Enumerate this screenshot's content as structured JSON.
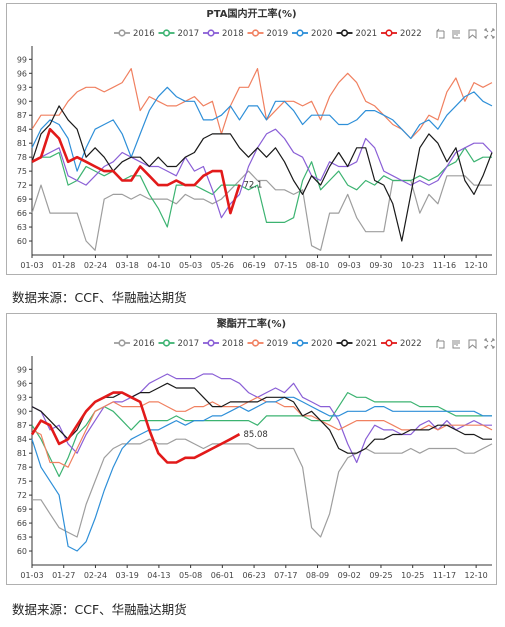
{
  "page": {
    "source_texts": [
      "数据来源：CCF、华融融达期货",
      "数据来源：CCF、华融融达期货"
    ]
  },
  "toolbar_icons": [
    "restore-icon",
    "data-view-icon",
    "save-image-icon",
    "fullscreen-icon"
  ],
  "chart_data": [
    {
      "type": "line",
      "title": "PTA国内开工率(%)",
      "xlabel": "",
      "ylabel": "",
      "ylim": [
        57,
        101
      ],
      "yticks": [
        60,
        63,
        66,
        69,
        72,
        75,
        78,
        81,
        84,
        87,
        90,
        93,
        96,
        99
      ],
      "xticks": [
        "01-03",
        "01-28",
        "02-24",
        "03-18",
        "04-10",
        "05-03",
        "05-26",
        "06-19",
        "07-15",
        "08-10",
        "09-03",
        "09-30",
        "10-23",
        "11-16",
        "12-10"
      ],
      "x_count": 52,
      "grid": false,
      "legend_position": "top",
      "annotation": {
        "text": "72.1",
        "series": "2022"
      },
      "series": [
        {
          "name": "2016",
          "color": "#9e9e9e",
          "values": [
            66,
            72,
            66,
            66,
            66,
            66,
            60,
            58,
            69,
            70,
            70,
            69,
            70,
            69,
            69,
            69,
            68,
            70,
            69,
            69,
            68,
            69,
            71,
            73,
            75,
            73,
            73,
            71,
            71,
            70,
            71,
            59,
            58,
            66,
            66,
            70,
            65,
            62,
            62,
            62,
            73,
            73,
            73,
            66,
            70,
            68,
            74,
            74,
            74,
            72,
            72,
            72
          ]
        },
        {
          "name": "2017",
          "color": "#3cb371",
          "values": [
            77,
            78,
            78,
            79,
            72,
            73,
            76,
            75,
            74,
            75,
            73,
            74,
            74,
            70,
            67,
            63,
            72,
            72,
            72,
            71,
            70,
            72,
            72,
            72,
            71,
            72,
            64,
            64,
            64,
            65,
            73,
            77,
            71,
            73,
            75,
            72,
            71,
            73,
            72,
            74,
            73,
            73,
            73,
            74,
            73,
            74,
            76,
            77,
            80,
            77,
            78,
            78
          ]
        },
        {
          "name": "2018",
          "color": "#8a5fd6",
          "values": [
            77,
            78,
            79,
            80,
            74,
            73,
            72,
            74,
            76,
            77,
            79,
            78,
            77,
            76,
            76,
            75,
            74,
            78,
            75,
            76,
            71,
            65,
            68,
            70,
            76,
            80,
            83,
            84,
            82,
            79,
            78,
            74,
            73,
            77,
            76,
            76,
            77,
            82,
            80,
            75,
            74,
            73,
            72,
            73,
            72,
            73,
            76,
            79,
            80,
            81,
            81,
            79
          ]
        },
        {
          "name": "2019",
          "color": "#f08060",
          "values": [
            84,
            87,
            87,
            87,
            90,
            92,
            93,
            93,
            92,
            93,
            94,
            97,
            88,
            91,
            90,
            89,
            89,
            90,
            91,
            89,
            90,
            83,
            89,
            93,
            93,
            97,
            86,
            88,
            90,
            90,
            89,
            90,
            86,
            91,
            94,
            96,
            94,
            90,
            89,
            87,
            85,
            84,
            82,
            84,
            87,
            86,
            92,
            95,
            90,
            94,
            93,
            94
          ]
        },
        {
          "name": "2020",
          "color": "#2e8fd8",
          "values": [
            80,
            84,
            86,
            85,
            82,
            75,
            80,
            84,
            85,
            86,
            83,
            78,
            83,
            88,
            91,
            93,
            91,
            90,
            90,
            86,
            86,
            87,
            89,
            86,
            89,
            89,
            86,
            90,
            90,
            88,
            85,
            87,
            87,
            87,
            85,
            85,
            86,
            88,
            88,
            87,
            86,
            84,
            82,
            85,
            86,
            84,
            87,
            89,
            91,
            92,
            90,
            89
          ]
        },
        {
          "name": "2021",
          "color": "#1a1a1a",
          "values": [
            77,
            83,
            85,
            89,
            86,
            84,
            78,
            80,
            78,
            75,
            77,
            78,
            78,
            76,
            78,
            76,
            76,
            78,
            79,
            82,
            83,
            83,
            83,
            80,
            78,
            80,
            78,
            80,
            77,
            73,
            70,
            74,
            72,
            76,
            79,
            76,
            80,
            80,
            73,
            72,
            68,
            60,
            70,
            80,
            83,
            81,
            77,
            80,
            73,
            70,
            74,
            79
          ]
        },
        {
          "name": "2022",
          "color": "#e21a1a",
          "bold": true,
          "values": [
            77,
            78,
            84,
            82,
            77,
            78,
            77,
            76,
            75,
            75,
            73,
            73,
            76,
            74,
            72,
            72,
            73,
            72,
            72,
            74,
            75,
            75,
            66,
            72.1
          ]
        }
      ]
    },
    {
      "type": "line",
      "title": "聚酯开工率(%)",
      "xlabel": "",
      "ylabel": "",
      "ylim": [
        57,
        101
      ],
      "yticks": [
        60,
        63,
        66,
        69,
        72,
        75,
        78,
        81,
        84,
        87,
        90,
        93,
        96,
        99
      ],
      "xticks": [
        "01-03",
        "01-27",
        "02-24",
        "03-19",
        "04-13",
        "05-08",
        "06-01",
        "06-23",
        "07-17",
        "08-09",
        "09-02",
        "09-25",
        "10-25",
        "11-17",
        "12-10"
      ],
      "x_count": 52,
      "grid": false,
      "legend_position": "top",
      "annotation": {
        "text": "85.08",
        "series": "2022"
      },
      "series": [
        {
          "name": "2016",
          "color": "#9e9e9e",
          "values": [
            71,
            71,
            68,
            65,
            64,
            63,
            70,
            75,
            80,
            82,
            83,
            83,
            83,
            84,
            83,
            83,
            84,
            84,
            83,
            82,
            83,
            83,
            83,
            83,
            83,
            82,
            82,
            82,
            82,
            82,
            78,
            65,
            63,
            68,
            77,
            80,
            81,
            82,
            81,
            81,
            81,
            81,
            82,
            81,
            82,
            82,
            82,
            82,
            81,
            81,
            82,
            83
          ]
        },
        {
          "name": "2017",
          "color": "#3cb371",
          "values": [
            87,
            84,
            80,
            76,
            80,
            85,
            87,
            90,
            91,
            90,
            88,
            86,
            88,
            88,
            88,
            88,
            89,
            88,
            88,
            88,
            88,
            88,
            88,
            88,
            88,
            87,
            89,
            89,
            89,
            89,
            89,
            88,
            88,
            88,
            91,
            94,
            93,
            93,
            92,
            92,
            92,
            92,
            92,
            91,
            91,
            91,
            90,
            89,
            89,
            89,
            89,
            89
          ]
        },
        {
          "name": "2018",
          "color": "#8a5fd6",
          "values": [
            91,
            90,
            86,
            87,
            83,
            81,
            85,
            88,
            91,
            92,
            92,
            93,
            94,
            96,
            97,
            98,
            97,
            97,
            97,
            98,
            98,
            97,
            97,
            96,
            94,
            93,
            94,
            95,
            94,
            96,
            93,
            92,
            91,
            91,
            88,
            83,
            79,
            84,
            87,
            86,
            86,
            85,
            85,
            87,
            88,
            86,
            88,
            86,
            87,
            88,
            87,
            87
          ]
        },
        {
          "name": "2019",
          "color": "#f08060",
          "values": [
            86,
            85,
            79,
            79,
            78,
            82,
            86,
            90,
            91,
            92,
            91,
            91,
            91,
            92,
            92,
            91,
            90,
            90,
            91,
            91,
            92,
            91,
            91,
            91,
            92,
            93,
            92,
            92,
            91,
            91,
            89,
            89,
            88,
            87,
            86,
            87,
            88,
            88,
            88,
            88,
            87,
            86,
            86,
            86,
            87,
            86,
            87,
            87,
            87,
            87,
            87,
            86
          ]
        },
        {
          "name": "2020",
          "color": "#2e8fd8",
          "values": [
            84,
            78,
            75,
            72,
            61,
            60,
            62,
            67,
            73,
            78,
            82,
            84,
            85,
            86,
            86,
            87,
            88,
            87,
            88,
            88,
            89,
            89,
            90,
            91,
            90,
            91,
            92,
            92,
            93,
            93,
            92,
            91,
            90,
            89,
            89,
            90,
            90,
            90,
            91,
            91,
            90,
            90,
            90,
            90,
            90,
            90,
            90,
            90,
            90,
            90,
            89,
            89
          ]
        },
        {
          "name": "2021",
          "color": "#1a1a1a",
          "values": [
            91,
            90,
            88,
            86,
            84,
            86,
            90,
            92,
            93,
            93,
            94,
            93,
            94,
            94,
            95,
            96,
            95,
            95,
            95,
            93,
            91,
            91,
            92,
            92,
            92,
            92,
            93,
            93,
            93,
            92,
            89,
            90,
            88,
            86,
            82,
            81,
            81,
            82,
            84,
            84,
            85,
            85,
            86,
            86,
            86,
            87,
            87,
            86,
            85,
            85,
            84,
            84
          ]
        },
        {
          "name": "2022",
          "color": "#e21a1a",
          "bold": true,
          "values": [
            85,
            88,
            87,
            83,
            84,
            87,
            90,
            92,
            93,
            94,
            94,
            93,
            92,
            86,
            81,
            79,
            79,
            80,
            80,
            81,
            82,
            83,
            84,
            85.08
          ]
        }
      ]
    }
  ]
}
